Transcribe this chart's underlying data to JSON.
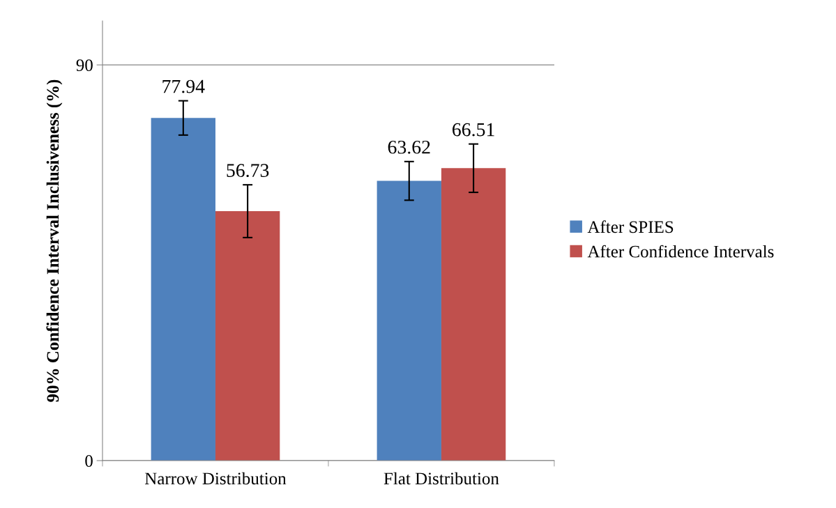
{
  "chart_data": {
    "type": "bar",
    "ylabel": "90% Confidence Interval Inclusiveness (%)",
    "categories": [
      "Narrow Distribution",
      "Flat Distribution"
    ],
    "series": [
      {
        "name": "After SPIES",
        "color": "#4f81bd",
        "values": [
          77.94,
          63.62
        ],
        "errors": [
          3.9,
          4.4
        ]
      },
      {
        "name": "After Confidence Intervals",
        "color": "#c0504d",
        "values": [
          56.73,
          66.51
        ],
        "errors": [
          6.0,
          5.5
        ]
      }
    ],
    "ylim": [
      0,
      100
    ],
    "yticks": [
      0,
      90
    ],
    "grid": "y",
    "legend": "right",
    "data_labels": true
  }
}
